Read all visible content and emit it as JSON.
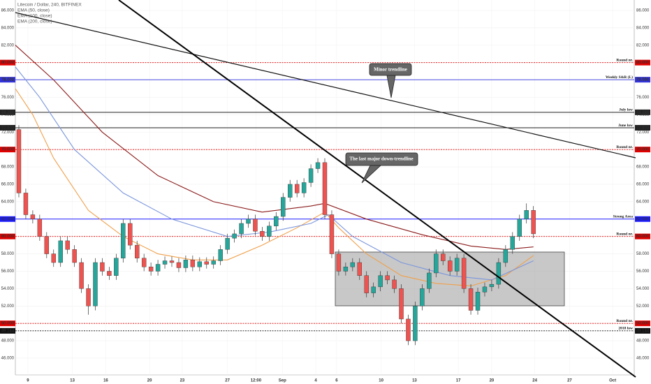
{
  "chart_data": {
    "type": "candlestick",
    "title": "Litecoin / Dollar, 240, BITFINEX",
    "indicators": [
      "EMA (50, close)",
      "EMA (100, close)",
      "EMA (200, close)"
    ],
    "xlim": [
      -0.5,
      88.5
    ],
    "xticks": [
      {
        "value": 1.3,
        "label": "9"
      },
      {
        "value": 7.7,
        "label": "13"
      },
      {
        "value": 12.5,
        "label": "16"
      },
      {
        "value": 18.8,
        "label": "20"
      },
      {
        "value": 23.5,
        "label": "23"
      },
      {
        "value": 30.0,
        "label": "27"
      },
      {
        "value": 34.1,
        "label": "12:00"
      },
      {
        "value": 37.9,
        "label": "Sep"
      },
      {
        "value": 42.7,
        "label": "4"
      },
      {
        "value": 45.7,
        "label": "6"
      },
      {
        "value": 52.1,
        "label": "10"
      },
      {
        "value": 56.9,
        "label": "13"
      },
      {
        "value": 63.2,
        "label": "17"
      },
      {
        "value": 68.0,
        "label": "20"
      },
      {
        "value": 74.2,
        "label": "24"
      },
      {
        "value": 79.2,
        "label": "27"
      },
      {
        "value": 85.4,
        "label": "Oct"
      }
    ],
    "ylim": [
      44.07,
      87.2
    ],
    "yticks": [
      {
        "value": 46,
        "label": "46.000"
      },
      {
        "value": 48,
        "label": "48.000"
      },
      {
        "value": 50,
        "label": "50.000"
      },
      {
        "value": 52,
        "label": "52.000"
      },
      {
        "value": 54,
        "label": "54.000"
      },
      {
        "value": 56,
        "label": "56.000"
      },
      {
        "value": 58,
        "label": "58.000"
      },
      {
        "value": 60,
        "label": "60.000"
      },
      {
        "value": 62,
        "label": "62.000"
      },
      {
        "value": 64,
        "label": "64.000"
      },
      {
        "value": 66,
        "label": "66.000"
      },
      {
        "value": 68,
        "label": "68.000"
      },
      {
        "value": 70,
        "label": "70.000"
      },
      {
        "value": 72,
        "label": "72.000"
      },
      {
        "value": 74,
        "label": "74.000"
      },
      {
        "value": 76,
        "label": "76.000"
      },
      {
        "value": 78,
        "label": "78.000"
      },
      {
        "value": 80,
        "label": "80.000"
      },
      {
        "value": 82,
        "label": "82.000"
      },
      {
        "value": 84,
        "label": "84.000"
      },
      {
        "value": 86,
        "label": "86.000"
      }
    ],
    "up_color": "#26a69a",
    "down_color": "#ef5350",
    "open": [
      72.3,
      65.0,
      62.5,
      62.0,
      60.0,
      58.0,
      57.0,
      59.5,
      58.5,
      57.0,
      54.0,
      52.0,
      57.0,
      56.0,
      55.5,
      57.5,
      61.5,
      59.0,
      57.5,
      56.5,
      56.0,
      56.8,
      57.2,
      57.0,
      56.4,
      57.3,
      56.5,
      57.1,
      56.8,
      57.2,
      58.5,
      59.8,
      60.3,
      61.5,
      62.0,
      60.6,
      60.0,
      61.2,
      62.3,
      64.5,
      66.0,
      65.0,
      66.2,
      67.8,
      68.5,
      62.5,
      58.0,
      56.0,
      56.5,
      57.0,
      55.5,
      53.5,
      54.2,
      55.5,
      55.0,
      54.0,
      50.5,
      48.0,
      52.0,
      54.0,
      55.8,
      58.0,
      57.2,
      56.0,
      57.5,
      54.0,
      51.5,
      53.6,
      54.2,
      54.5,
      57.0,
      58.5,
      60.0,
      62.0,
      63.0
    ],
    "high": [
      72.8,
      65.5,
      63.0,
      62.5,
      60.5,
      58.5,
      60.0,
      60.0,
      59.0,
      57.5,
      54.5,
      57.5,
      57.5,
      56.5,
      58.0,
      62.0,
      62.0,
      59.5,
      58.0,
      57.0,
      57.3,
      57.7,
      57.7,
      57.5,
      57.8,
      57.8,
      57.6,
      57.6,
      57.7,
      59.0,
      60.3,
      60.8,
      62.0,
      62.5,
      62.5,
      61.1,
      61.7,
      62.8,
      65.0,
      66.5,
      66.5,
      66.7,
      68.3,
      69.0,
      69.0,
      63.0,
      58.5,
      57.0,
      57.5,
      57.5,
      56.0,
      54.7,
      56.0,
      56.0,
      55.5,
      54.5,
      51.0,
      52.5,
      54.5,
      56.3,
      58.5,
      58.5,
      57.7,
      58.0,
      58.0,
      54.5,
      54.1,
      54.7,
      55.0,
      57.5,
      59.0,
      60.5,
      62.5,
      63.8,
      63.5
    ],
    "low": [
      64.5,
      62.0,
      61.5,
      59.5,
      57.5,
      56.5,
      56.5,
      58.0,
      56.5,
      53.5,
      51.0,
      51.5,
      55.5,
      55.0,
      55.0,
      57.0,
      58.5,
      57.0,
      56.0,
      55.5,
      55.5,
      56.3,
      56.5,
      55.9,
      55.9,
      56.0,
      56.0,
      56.3,
      56.3,
      56.7,
      58.0,
      59.3,
      59.8,
      61.0,
      60.1,
      59.5,
      59.5,
      60.7,
      61.8,
      64.0,
      64.5,
      64.5,
      65.7,
      67.3,
      62.0,
      57.5,
      55.5,
      55.5,
      56.0,
      55.0,
      53.0,
      53.0,
      53.7,
      54.5,
      53.5,
      50.0,
      47.5,
      47.5,
      51.5,
      53.5,
      55.3,
      56.7,
      55.5,
      55.5,
      53.5,
      51.0,
      51.0,
      53.1,
      53.7,
      54.0,
      56.5,
      58.0,
      59.5,
      61.5,
      59.8
    ],
    "close": [
      65.0,
      62.5,
      62.0,
      60.0,
      58.0,
      57.0,
      59.5,
      58.5,
      57.0,
      54.0,
      52.0,
      57.0,
      56.0,
      55.5,
      57.5,
      61.5,
      59.0,
      57.5,
      56.5,
      56.0,
      56.8,
      57.2,
      57.0,
      56.4,
      57.3,
      56.5,
      57.1,
      56.8,
      57.2,
      58.5,
      59.8,
      60.3,
      61.5,
      62.0,
      60.6,
      60.0,
      61.2,
      62.3,
      64.5,
      66.0,
      65.0,
      66.2,
      67.8,
      68.5,
      62.5,
      58.0,
      56.0,
      56.5,
      57.0,
      55.5,
      53.5,
      54.2,
      55.5,
      55.0,
      54.0,
      50.5,
      48.0,
      52.0,
      54.0,
      55.8,
      58.0,
      57.2,
      56.0,
      57.5,
      54.0,
      51.5,
      53.6,
      54.2,
      54.5,
      57.0,
      58.5,
      60.0,
      62.0,
      63.0,
      60.3
    ],
    "series": [
      {
        "name": "EMA (50, close)",
        "color": "#f0a04b",
        "x": [
          -0.5,
          2,
          5,
          10,
          15,
          20,
          25,
          30,
          35,
          40,
          44,
          46,
          50,
          55,
          60,
          65,
          70,
          74
        ],
        "values": [
          77,
          74,
          69,
          63,
          60,
          58,
          57.3,
          57.3,
          59,
          61,
          62.8,
          61,
          58,
          55.5,
          54.6,
          54.3,
          55.5,
          57.8
        ]
      },
      {
        "name": "EMA (100, close)",
        "color": "#7b96dc",
        "x": [
          -0.5,
          3,
          8,
          15,
          22,
          30,
          36,
          42,
          44.5,
          48,
          55,
          62,
          68,
          74
        ],
        "values": [
          79.5,
          76,
          70,
          65,
          62,
          60,
          60.5,
          61.5,
          62.5,
          60,
          57,
          55.5,
          55,
          57.2
        ]
      },
      {
        "name": "EMA (200, close)",
        "color": "#8b1a1a",
        "x": [
          -0.5,
          5,
          12,
          20,
          28,
          35,
          42,
          44,
          50,
          58,
          65,
          70,
          74
        ],
        "values": [
          82,
          78,
          72,
          67,
          64,
          62.8,
          63.5,
          63.8,
          62,
          60.2,
          58.9,
          58.5,
          58.8
        ]
      }
    ],
    "levels": [
      {
        "value": 80,
        "tag": "80.000",
        "label": "Round nr.",
        "color": "#e00000",
        "dashed": true
      },
      {
        "value": 78.031,
        "tag": "78.031",
        "label": "Weekly S&R (L)",
        "color": "#3333dd",
        "dashed": false
      },
      {
        "value": 74.28,
        "tag": "74.280",
        "label": "July low",
        "color": "#222222",
        "dashed": false
      },
      {
        "value": 72.503,
        "tag": "72.503",
        "label": "June low",
        "color": "#222222",
        "dashed": false
      },
      {
        "value": 70,
        "tag": "70.000",
        "label": "Round nr.",
        "color": "#e00000",
        "dashed": true
      },
      {
        "value": 62,
        "tag": "62.000",
        "label": "Strong Area",
        "color": "#1a1aff",
        "dashed": false
      },
      {
        "value": 60,
        "tag": "60.000",
        "label": "Round nr.",
        "color": "#e00000",
        "dashed": true
      },
      {
        "value": 50,
        "tag": "50.000",
        "label": "Round nr.",
        "color": "#e00000",
        "dashed": true
      },
      {
        "value": 49.144,
        "tag": "49.144",
        "label": "2018 low",
        "color": "#111111",
        "dashed": true
      }
    ],
    "annotations": [
      "Minor trendline",
      "The last major down-trendline"
    ]
  }
}
